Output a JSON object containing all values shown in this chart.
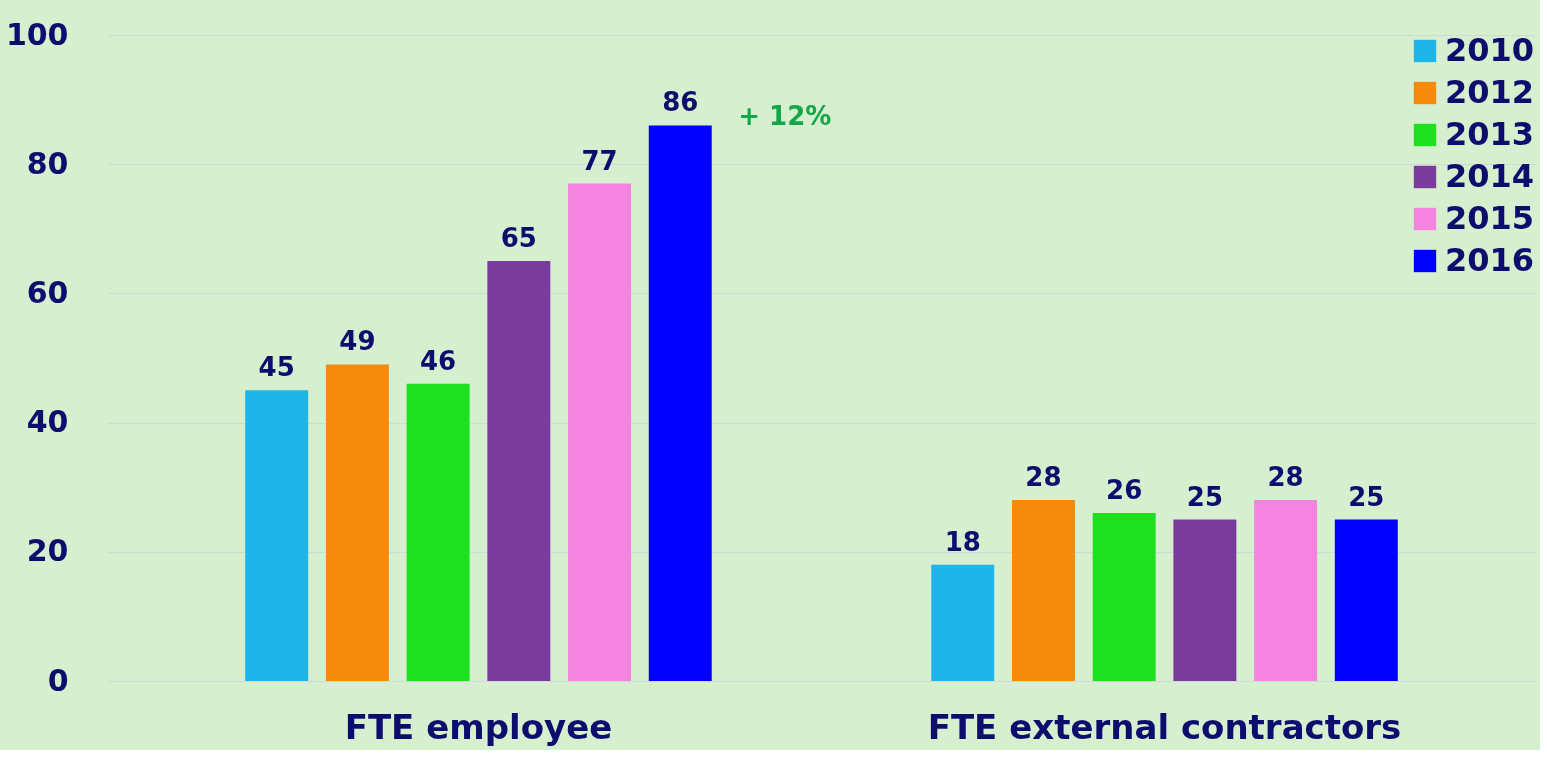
{
  "chart_data": {
    "type": "bar",
    "categories": [
      "FTE employee",
      "FTE external contractors"
    ],
    "series": [
      {
        "name": "2010",
        "color": "#1fb5e8",
        "values": [
          45,
          18
        ]
      },
      {
        "name": "2012",
        "color": "#f58a0b",
        "values": [
          49,
          28
        ]
      },
      {
        "name": "2013",
        "color": "#1ee01e",
        "values": [
          46,
          26
        ]
      },
      {
        "name": "2014",
        "color": "#7a3b9c",
        "values": [
          65,
          25
        ]
      },
      {
        "name": "2015",
        "color": "#f584e0",
        "values": [
          77,
          28
        ]
      },
      {
        "name": "2016",
        "color": "#0000ff",
        "values": [
          86,
          25
        ]
      }
    ],
    "ylim": [
      0,
      100
    ],
    "yticks": [
      0,
      20,
      40,
      60,
      80,
      100
    ],
    "grid": "y",
    "legend": "top right",
    "data_labels": true,
    "annotations": [
      "+ 12%"
    ]
  }
}
